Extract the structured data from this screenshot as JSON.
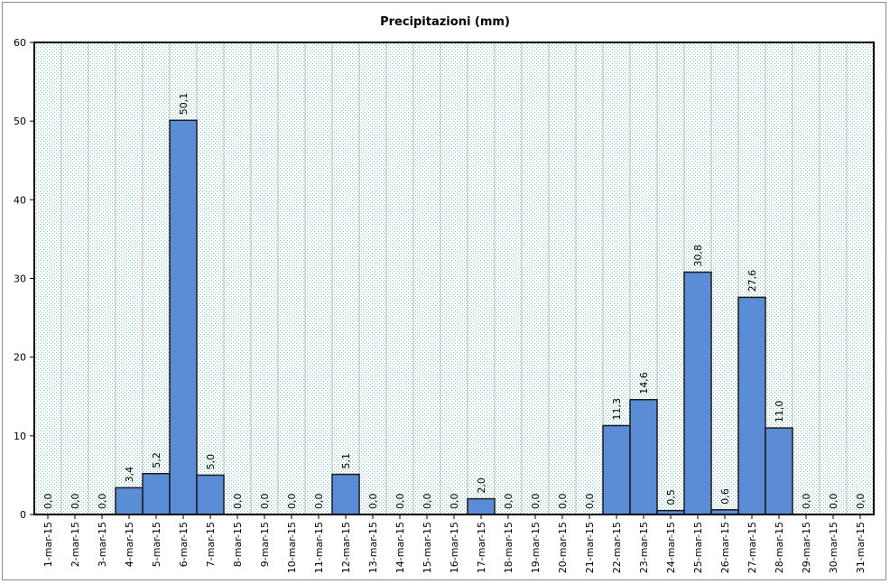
{
  "chart_data": {
    "type": "bar",
    "title": "Precipitazioni (mm)",
    "xlabel": "",
    "ylabel": "",
    "ylim": [
      0,
      60
    ],
    "yticks": [
      "0",
      "10",
      "20",
      "30",
      "40",
      "50",
      "60"
    ],
    "grid": true,
    "categories": [
      "1-mar-15",
      "2-mar-15",
      "3-mar-15",
      "4-mar-15",
      "5-mar-15",
      "6-mar-15",
      "7-mar-15",
      "8-mar-15",
      "9-mar-15",
      "10-mar-15",
      "11-mar-15",
      "12-mar-15",
      "13-mar-15",
      "14-mar-15",
      "15-mar-15",
      "16-mar-15",
      "17-mar-15",
      "18-mar-15",
      "19-mar-15",
      "20-mar-15",
      "21-mar-15",
      "22-mar-15",
      "23-mar-15",
      "24-mar-15",
      "25-mar-15",
      "26-mar-15",
      "27-mar-15",
      "28-mar-15",
      "29-mar-15",
      "30-mar-15",
      "31-mar-15"
    ],
    "values": [
      0.0,
      0.0,
      0.0,
      3.4,
      5.2,
      50.1,
      5.0,
      0.0,
      0.0,
      0.0,
      0.0,
      5.1,
      0.0,
      0.0,
      0.0,
      0.0,
      2.0,
      0.0,
      0.0,
      0.0,
      0.0,
      11.3,
      14.6,
      0.5,
      30.8,
      0.6,
      27.6,
      11.0,
      0.0,
      0.0,
      0.0
    ],
    "labels": [
      "0,0",
      "0,0",
      "0,0",
      "3,4",
      "5,2",
      "50,1",
      "5,0",
      "0,0",
      "0,0",
      "0,0",
      "0,0",
      "5,1",
      "0,0",
      "0,0",
      "0,0",
      "0,0",
      "2,0",
      "0,0",
      "0,0",
      "0,0",
      "0,0",
      "11,3",
      "14,6",
      "0,5",
      "30,8",
      "0,6",
      "27,6",
      "11,0",
      "0,0",
      "0,0",
      "0,0"
    ],
    "colors": {
      "bar_fill": "#5b8dd6",
      "bar_stroke": "#1a1a1a",
      "plot_bg": "#d9ecec",
      "grid": "#b8b8b8"
    }
  }
}
